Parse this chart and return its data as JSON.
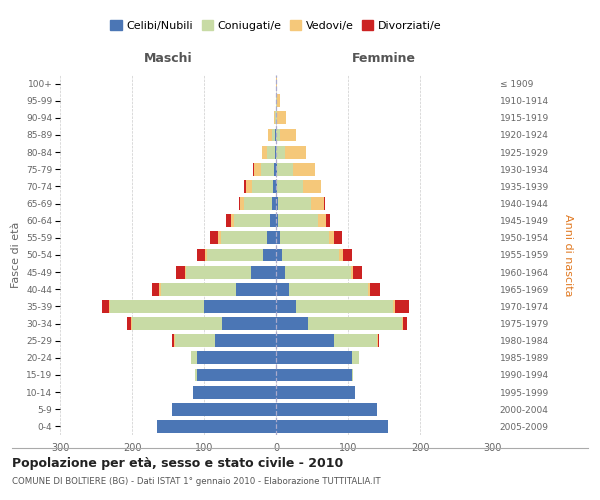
{
  "age_groups": [
    "0-4",
    "5-9",
    "10-14",
    "15-19",
    "20-24",
    "25-29",
    "30-34",
    "35-39",
    "40-44",
    "45-49",
    "50-54",
    "55-59",
    "60-64",
    "65-69",
    "70-74",
    "75-79",
    "80-84",
    "85-89",
    "90-94",
    "95-99",
    "100+"
  ],
  "birth_years": [
    "2005-2009",
    "2000-2004",
    "1995-1999",
    "1990-1994",
    "1985-1989",
    "1980-1984",
    "1975-1979",
    "1970-1974",
    "1965-1969",
    "1960-1964",
    "1955-1959",
    "1950-1954",
    "1945-1949",
    "1940-1944",
    "1935-1939",
    "1930-1934",
    "1925-1929",
    "1920-1924",
    "1915-1919",
    "1910-1914",
    "≤ 1909"
  ],
  "male": {
    "celibi": [
      165,
      145,
      115,
      110,
      110,
      85,
      75,
      100,
      55,
      35,
      18,
      12,
      8,
      5,
      4,
      3,
      2,
      1,
      0,
      0,
      0
    ],
    "coniugati": [
      0,
      0,
      0,
      2,
      8,
      55,
      125,
      130,
      105,
      90,
      78,
      65,
      50,
      40,
      30,
      18,
      10,
      5,
      1,
      0,
      0
    ],
    "vedovi": [
      0,
      0,
      0,
      0,
      0,
      2,
      2,
      2,
      2,
      2,
      2,
      3,
      4,
      5,
      8,
      10,
      8,
      5,
      2,
      0,
      0
    ],
    "divorziati": [
      0,
      0,
      0,
      0,
      0,
      2,
      5,
      10,
      10,
      12,
      12,
      12,
      8,
      2,
      2,
      1,
      0,
      0,
      0,
      0,
      0
    ]
  },
  "female": {
    "nubili": [
      155,
      140,
      110,
      105,
      105,
      80,
      45,
      28,
      18,
      12,
      8,
      5,
      3,
      3,
      2,
      2,
      0,
      0,
      0,
      0,
      0
    ],
    "coniugate": [
      0,
      0,
      0,
      2,
      10,
      60,
      130,
      135,
      110,
      92,
      80,
      68,
      55,
      45,
      35,
      22,
      12,
      6,
      2,
      1,
      0
    ],
    "vedove": [
      0,
      0,
      0,
      0,
      0,
      1,
      2,
      2,
      2,
      3,
      5,
      8,
      12,
      18,
      25,
      30,
      30,
      22,
      12,
      5,
      1
    ],
    "divorziate": [
      0,
      0,
      0,
      0,
      0,
      2,
      5,
      20,
      15,
      12,
      12,
      10,
      5,
      2,
      1,
      0,
      0,
      0,
      0,
      0,
      0
    ]
  },
  "color_celibi": "#4b76b5",
  "color_coniugati": "#c8dba5",
  "color_vedovi": "#f5c87a",
  "color_divorziati": "#cc2222",
  "title": "Popolazione per età, sesso e stato civile - 2010",
  "subtitle": "COMUNE DI BOLTIERE (BG) - Dati ISTAT 1° gennaio 2010 - Elaborazione TUTTITALIA.IT",
  "xlabel_left": "Maschi",
  "xlabel_right": "Femmine",
  "ylabel_left": "Fasce di età",
  "ylabel_right": "Anni di nascita",
  "xlim": 300,
  "legend_labels": [
    "Celibi/Nubili",
    "Coniugati/e",
    "Vedovi/e",
    "Divorziati/e"
  ],
  "bg_color": "#ffffff",
  "grid_color": "#cccccc",
  "bar_height": 0.75
}
